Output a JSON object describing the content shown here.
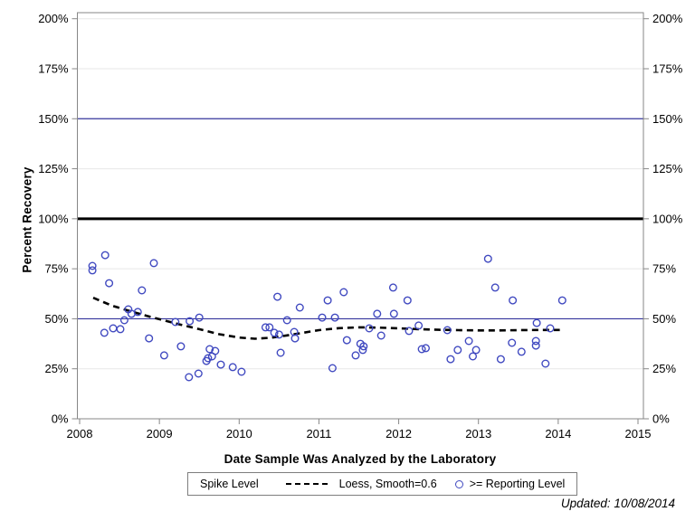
{
  "chart_data": {
    "type": "scatter",
    "title": "",
    "xlabel": "Date Sample Was Analyzed by the Laboratory",
    "ylabel": "Percent Recovery",
    "xlim": [
      2008,
      2015
    ],
    "ylim": [
      0,
      200
    ],
    "x_ticks": [
      2008,
      2009,
      2010,
      2011,
      2012,
      2013,
      2014,
      2015
    ],
    "y_ticks": [
      0,
      25,
      50,
      75,
      100,
      125,
      150,
      175,
      200
    ],
    "y_tick_suffix": "%",
    "grid": {
      "horizontal": true,
      "color": "#e7e7e7"
    },
    "frame_color": "#878787",
    "tick_color": "#878787",
    "reference_lines": [
      {
        "y": 50,
        "color": "#34349c",
        "width": 1.2,
        "name": "lower-control-line-50"
      },
      {
        "y": 100,
        "color": "#000000",
        "width": 3,
        "name": "spike-level-line-100"
      },
      {
        "y": 150,
        "color": "#34349c",
        "width": 1.2,
        "name": "upper-control-line-150"
      }
    ],
    "series": [
      {
        "name": ">= Reporting Level",
        "type": "scatter",
        "marker": "open-circle",
        "color": "#4049c0",
        "points": [
          [
            2008.16,
            76.4
          ],
          [
            2008.16,
            74.2
          ],
          [
            2008.32,
            81.8
          ],
          [
            2008.37,
            67.8
          ],
          [
            2008.31,
            43.0
          ],
          [
            2008.42,
            45.2
          ],
          [
            2008.51,
            44.8
          ],
          [
            2008.56,
            49.3
          ],
          [
            2008.61,
            54.7
          ],
          [
            2008.65,
            52.5
          ],
          [
            2008.73,
            53.4
          ],
          [
            2008.78,
            64.2
          ],
          [
            2008.87,
            40.2
          ],
          [
            2008.93,
            77.8
          ],
          [
            2009.06,
            31.7
          ],
          [
            2009.2,
            48.4
          ],
          [
            2009.27,
            36.2
          ],
          [
            2009.38,
            48.8
          ],
          [
            2009.37,
            20.8
          ],
          [
            2009.49,
            22.6
          ],
          [
            2009.5,
            50.6
          ],
          [
            2009.63,
            34.8
          ],
          [
            2009.7,
            33.9
          ],
          [
            2009.66,
            31.2
          ],
          [
            2009.61,
            30.3
          ],
          [
            2009.59,
            28.9
          ],
          [
            2009.77,
            27.1
          ],
          [
            2009.92,
            25.8
          ],
          [
            2010.03,
            23.5
          ],
          [
            2010.33,
            45.7
          ],
          [
            2010.38,
            45.7
          ],
          [
            2010.44,
            43.0
          ],
          [
            2010.5,
            42.1
          ],
          [
            2010.52,
            33.0
          ],
          [
            2010.48,
            61.0
          ],
          [
            2010.6,
            49.3
          ],
          [
            2010.69,
            43.4
          ],
          [
            2010.7,
            40.2
          ],
          [
            2010.76,
            55.6
          ],
          [
            2011.04,
            50.6
          ],
          [
            2011.11,
            59.2
          ],
          [
            2011.17,
            25.3
          ],
          [
            2011.2,
            50.6
          ],
          [
            2011.31,
            63.3
          ],
          [
            2011.35,
            39.3
          ],
          [
            2011.46,
            31.7
          ],
          [
            2011.52,
            37.5
          ],
          [
            2011.56,
            36.2
          ],
          [
            2011.55,
            34.4
          ],
          [
            2011.63,
            45.2
          ],
          [
            2011.78,
            41.6
          ],
          [
            2011.73,
            52.5
          ],
          [
            2011.94,
            52.5
          ],
          [
            2011.93,
            65.6
          ],
          [
            2012.11,
            59.2
          ],
          [
            2012.13,
            43.9
          ],
          [
            2012.25,
            46.6
          ],
          [
            2012.29,
            34.8
          ],
          [
            2012.34,
            35.3
          ],
          [
            2012.61,
            44.3
          ],
          [
            2012.65,
            29.8
          ],
          [
            2012.74,
            34.4
          ],
          [
            2012.88,
            38.9
          ],
          [
            2012.93,
            31.2
          ],
          [
            2012.97,
            34.4
          ],
          [
            2013.12,
            80.0
          ],
          [
            2013.21,
            65.6
          ],
          [
            2013.28,
            29.8
          ],
          [
            2013.43,
            59.2
          ],
          [
            2013.42,
            38.0
          ],
          [
            2013.54,
            33.5
          ],
          [
            2013.73,
            47.9
          ],
          [
            2013.72,
            38.9
          ],
          [
            2013.72,
            36.6
          ],
          [
            2013.84,
            27.6
          ],
          [
            2013.9,
            45.2
          ],
          [
            2014.05,
            59.2
          ]
        ]
      },
      {
        "name": "Loess, Smooth=0.6",
        "type": "line",
        "style": "dashed",
        "color": "#000000",
        "points": [
          [
            2008.17,
            60.5
          ],
          [
            2008.4,
            56.6
          ],
          [
            2008.6,
            54.2
          ],
          [
            2008.8,
            51.9
          ],
          [
            2009.0,
            49.8
          ],
          [
            2009.25,
            47.2
          ],
          [
            2009.5,
            44.8
          ],
          [
            2009.75,
            42.3
          ],
          [
            2010.0,
            40.6
          ],
          [
            2010.2,
            40.0
          ],
          [
            2010.4,
            40.5
          ],
          [
            2010.6,
            41.7
          ],
          [
            2010.8,
            43.0
          ],
          [
            2011.0,
            44.3
          ],
          [
            2011.25,
            45.3
          ],
          [
            2011.5,
            45.7
          ],
          [
            2011.75,
            45.6
          ],
          [
            2012.0,
            45.2
          ],
          [
            2012.25,
            44.8
          ],
          [
            2012.5,
            44.5
          ],
          [
            2012.75,
            44.3
          ],
          [
            2013.0,
            44.2
          ],
          [
            2013.25,
            44.2
          ],
          [
            2013.5,
            44.3
          ],
          [
            2013.75,
            44.4
          ],
          [
            2014.02,
            44.4
          ]
        ]
      }
    ],
    "legend_position": "bottom"
  },
  "legend": {
    "title": "Spike Level",
    "entries": [
      {
        "symbol": "dashed-line",
        "label": "Loess, Smooth=0.6"
      },
      {
        "symbol": "open-circle",
        "label": ">= Reporting Level"
      }
    ]
  },
  "footer": {
    "updated": "Updated: 10/08/2014"
  }
}
